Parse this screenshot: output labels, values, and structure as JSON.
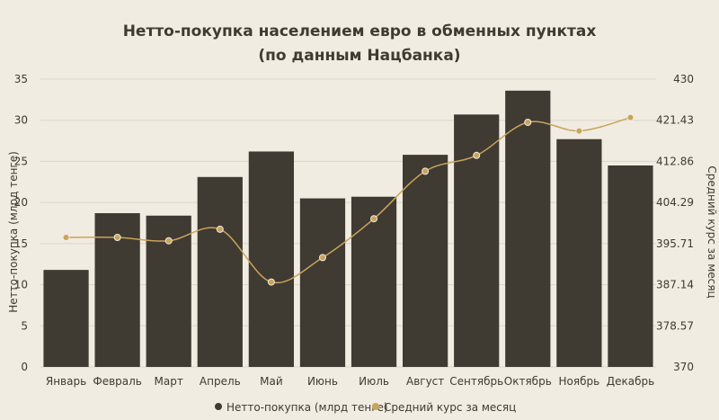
{
  "chart_data": {
    "type": "bar",
    "title": "Нетто-покупка населением евро в обменных пунктах",
    "subtitle": "(по данным Нацбанка)",
    "categories": [
      "Январь",
      "Февраль",
      "Март",
      "Апрель",
      "Май",
      "Июнь",
      "Июль",
      "Август",
      "Сентябрь",
      "Октябрь",
      "Ноябрь",
      "Декабрь"
    ],
    "series": [
      {
        "name": "Нетто-покупка (млрд тенге)",
        "type": "bar",
        "axis": "left",
        "color": "#3f3a32",
        "values": [
          11.8,
          18.7,
          18.4,
          23.1,
          26.2,
          20.5,
          20.7,
          25.8,
          30.7,
          33.6,
          27.7,
          24.5
        ]
      },
      {
        "name": "Средний курс за месяц",
        "type": "line",
        "axis": "right",
        "color": "#c9a45c",
        "values": [
          397.0,
          397.0,
          396.3,
          398.7,
          387.7,
          392.8,
          400.9,
          410.8,
          414.1,
          421.0,
          419.2,
          422.0
        ]
      }
    ],
    "ylabel": "Нетто-покупка (млрд тенге)",
    "y2label": "Средний курс за месяц",
    "ylim": [
      0,
      35
    ],
    "y2lim": [
      370,
      430
    ],
    "yticks": [
      "0",
      "5",
      "10",
      "15",
      "20",
      "25",
      "30",
      "35"
    ],
    "y2ticks": [
      "370",
      "378.57",
      "387.14",
      "395.71",
      "404.29",
      "412.86",
      "421.43",
      "430"
    ],
    "legend_position": "bottom",
    "grid": true
  }
}
